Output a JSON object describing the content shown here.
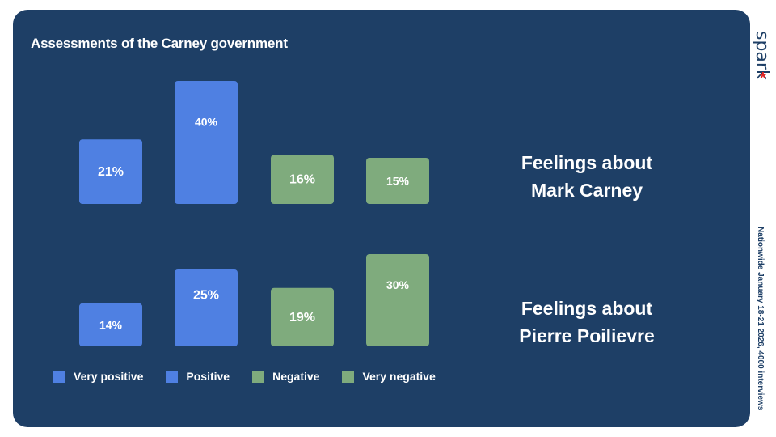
{
  "title": "Assessments of the Carney government",
  "brand": "spark",
  "brand_mark": "*",
  "footnote": "Nationwide January 18-21 2026, 4000 interviews",
  "colors": {
    "background": "#1e3f66",
    "positive": "#4f80e2",
    "negative": "#7fab7d",
    "text": "#ffffff",
    "brand_accent": "#e02323"
  },
  "chart_data": {
    "type": "bar",
    "title": "Assessments of the Carney government",
    "categories": [
      "Very positive",
      "Positive",
      "Negative",
      "Very negative"
    ],
    "ylim": [
      0,
      40
    ],
    "grid": false,
    "legend_position": "bottom-left",
    "groups": [
      {
        "label_line1": "Feelings about",
        "label_line2": "Mark Carney",
        "values": [
          21,
          40,
          16,
          15
        ],
        "labels": [
          "21%",
          "40%",
          "16%",
          "15%"
        ]
      },
      {
        "label_line1": "Feelings about",
        "label_line2": "Pierre Poilievre",
        "values": [
          14,
          25,
          19,
          30
        ],
        "labels": [
          "14%",
          "25%",
          "19%",
          "30%"
        ]
      }
    ],
    "legend": [
      {
        "label": "Very positive",
        "color": "#4f80e2"
      },
      {
        "label": "Positive",
        "color": "#4f80e2"
      },
      {
        "label": "Negative",
        "color": "#7fab7d"
      },
      {
        "label": "Very negative",
        "color": "#7fab7d"
      }
    ]
  }
}
